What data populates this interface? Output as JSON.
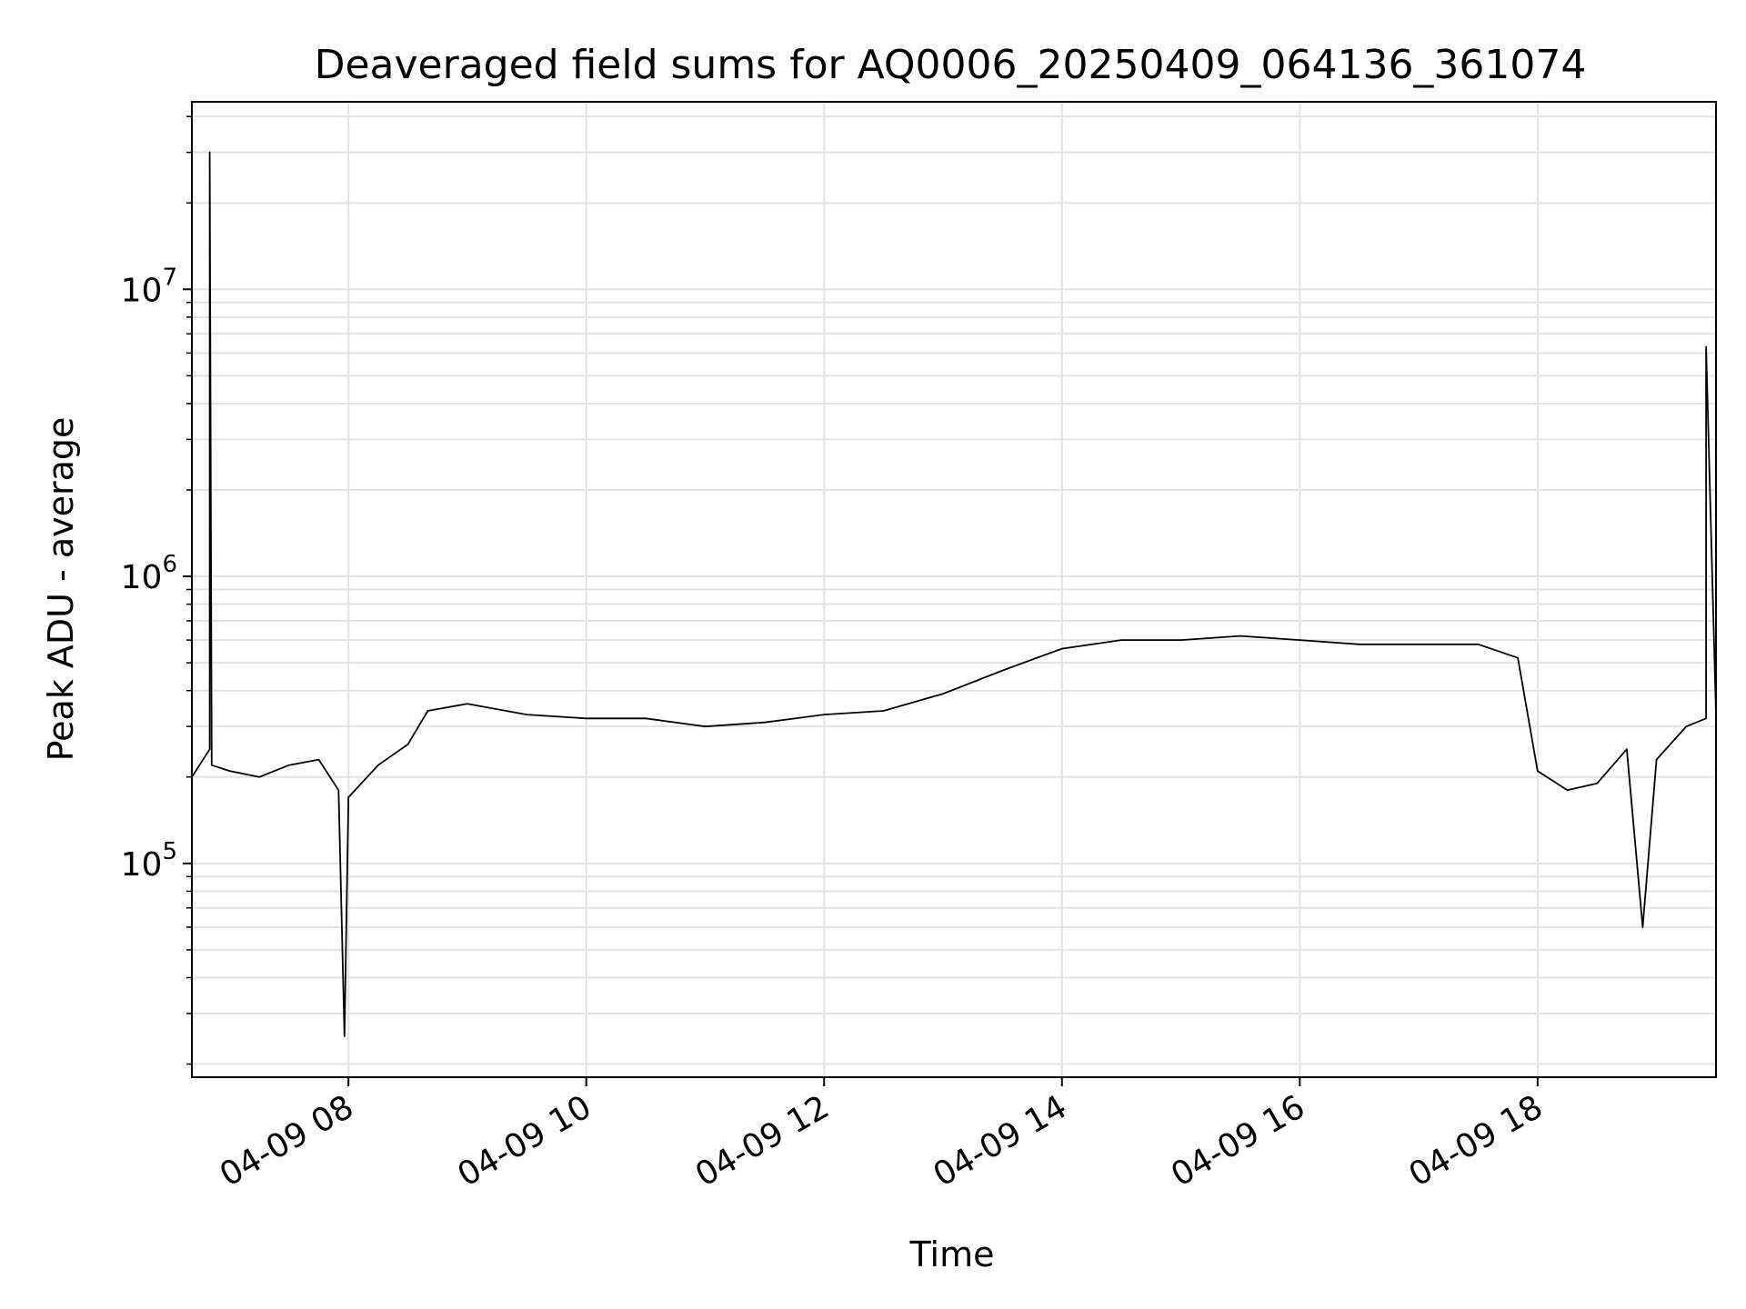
{
  "chart_data": {
    "type": "line",
    "title": "Deaveraged field sums for AQ0006_20250409_064136_361074",
    "xlabel": "Time",
    "ylabel": "Peak ADU - average",
    "y_scale": "log",
    "ylim": [
      18000,
      45000000
    ],
    "xlim": [
      "2025-04-09 06:41",
      "2025-04-09 19:30"
    ],
    "x_ticks": [
      {
        "x": "2025-04-09 08:00",
        "label": "04-09 08"
      },
      {
        "x": "2025-04-09 10:00",
        "label": "04-09 10"
      },
      {
        "x": "2025-04-09 12:00",
        "label": "04-09 12"
      },
      {
        "x": "2025-04-09 14:00",
        "label": "04-09 14"
      },
      {
        "x": "2025-04-09 16:00",
        "label": "04-09 16"
      },
      {
        "x": "2025-04-09 18:00",
        "label": "04-09 18"
      }
    ],
    "y_ticks": [
      {
        "value": 100000,
        "base": "10",
        "exp": "5"
      },
      {
        "value": 1000000,
        "base": "10",
        "exp": "6"
      },
      {
        "value": 10000000,
        "base": "10",
        "exp": "7"
      }
    ],
    "grid": true,
    "legend": "none",
    "series": [
      {
        "color": "#000000",
        "x": [
          "2025-04-09 06:41",
          "2025-04-09 06:50",
          "2025-04-09 06:50",
          "2025-04-09 06:51",
          "2025-04-09 07:00",
          "2025-04-09 07:15",
          "2025-04-09 07:30",
          "2025-04-09 07:45",
          "2025-04-09 07:55",
          "2025-04-09 07:58",
          "2025-04-09 08:00",
          "2025-04-09 08:15",
          "2025-04-09 08:30",
          "2025-04-09 08:40",
          "2025-04-09 09:00",
          "2025-04-09 09:30",
          "2025-04-09 10:00",
          "2025-04-09 10:30",
          "2025-04-09 11:00",
          "2025-04-09 11:30",
          "2025-04-09 12:00",
          "2025-04-09 12:30",
          "2025-04-09 13:00",
          "2025-04-09 13:30",
          "2025-04-09 14:00",
          "2025-04-09 14:30",
          "2025-04-09 15:00",
          "2025-04-09 15:30",
          "2025-04-09 16:00",
          "2025-04-09 16:30",
          "2025-04-09 17:00",
          "2025-04-09 17:30",
          "2025-04-09 17:50",
          "2025-04-09 18:00",
          "2025-04-09 18:15",
          "2025-04-09 18:30",
          "2025-04-09 18:45",
          "2025-04-09 18:53",
          "2025-04-09 19:00",
          "2025-04-09 19:15",
          "2025-04-09 19:25",
          "2025-04-09 19:25",
          "2025-04-09 19:30"
        ],
        "y": [
          200000,
          250000,
          30000000,
          220000,
          210000,
          200000,
          220000,
          230000,
          180000,
          25000,
          170000,
          220000,
          260000,
          340000,
          360000,
          330000,
          320000,
          320000,
          300000,
          310000,
          330000,
          340000,
          390000,
          470000,
          560000,
          600000,
          600000,
          620000,
          600000,
          580000,
          580000,
          580000,
          520000,
          210000,
          180000,
          190000,
          250000,
          60000,
          230000,
          300000,
          320000,
          6300000,
          330000
        ]
      }
    ]
  }
}
